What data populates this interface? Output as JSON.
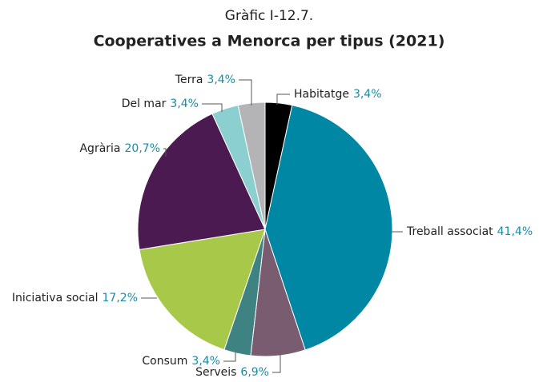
{
  "chart_data": {
    "type": "pie",
    "figure_label": "Gràfic I-12.7.",
    "title": "Cooperatives a Menorca per tipus (2021)",
    "categories": [
      "Habitatge",
      "Treball associat",
      "Serveis",
      "Consum",
      "Iniciativa social",
      "Agrària",
      "Del mar",
      "Terra"
    ],
    "values": [
      3.4,
      41.4,
      6.9,
      3.4,
      17.2,
      20.7,
      3.4,
      3.4
    ],
    "value_labels": [
      "3,4%",
      "41,4%",
      "6,9%",
      "3,4%",
      "17,2%",
      "20,7%",
      "3,4%",
      "3,4%"
    ],
    "colors": [
      "#000000",
      "#0087a3",
      "#7a5c70",
      "#3f8282",
      "#a8c84a",
      "#4b1a50",
      "#8ccfd0",
      "#b4b4b6"
    ]
  }
}
